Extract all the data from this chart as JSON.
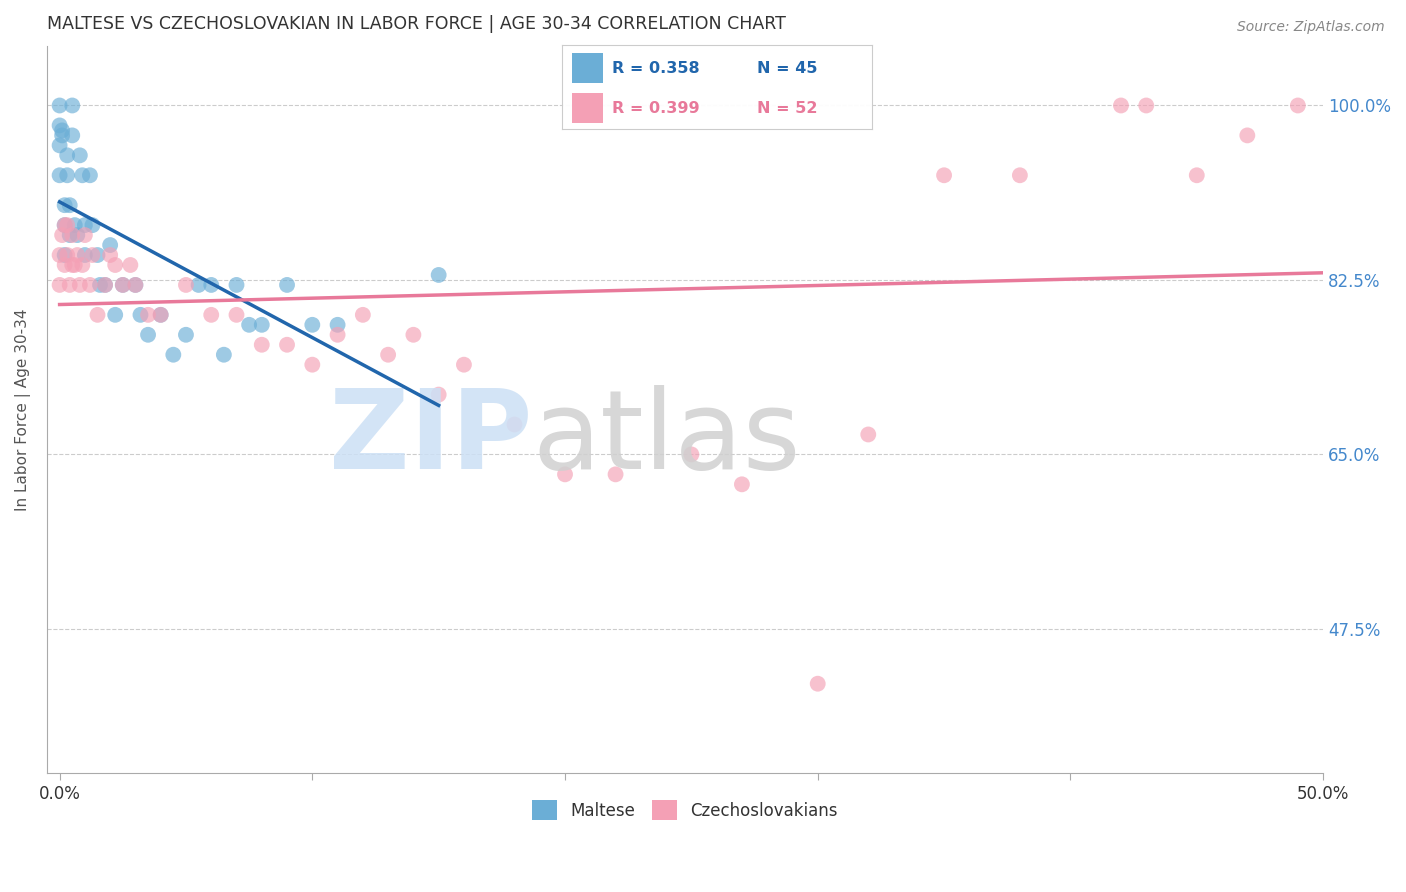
{
  "title": "MALTESE VS CZECHOSLOVAKIAN IN LABOR FORCE | AGE 30-34 CORRELATION CHART",
  "source": "Source: ZipAtlas.com",
  "ylabel": "In Labor Force | Age 30-34",
  "x_ticks": [
    0.0,
    0.1,
    0.2,
    0.3,
    0.4,
    0.5
  ],
  "x_tick_labels_visible": {
    "0.0": "0.0%",
    "0.5": "50.0%"
  },
  "y_tick_labels": [
    "47.5%",
    "65.0%",
    "82.5%",
    "100.0%"
  ],
  "y_ticks": [
    0.475,
    0.65,
    0.825,
    1.0
  ],
  "xlim": [
    -0.005,
    0.5
  ],
  "ylim": [
    0.33,
    1.06
  ],
  "legend_r_maltese": "R = 0.358",
  "legend_n_maltese": "N = 45",
  "legend_r_czech": "R = 0.399",
  "legend_n_czech": "N = 52",
  "maltese_color": "#6baed6",
  "czech_color": "#f4a0b5",
  "maltese_line_color": "#2166ac",
  "czech_line_color": "#e8799a",
  "title_color": "#333333",
  "axis_label_color": "#555555",
  "tick_color_right": "#4488cc",
  "grid_color": "#cccccc",
  "maltese_x": [
    0.0,
    0.0,
    0.0,
    0.0,
    0.001,
    0.001,
    0.002,
    0.002,
    0.002,
    0.003,
    0.003,
    0.004,
    0.004,
    0.005,
    0.005,
    0.006,
    0.007,
    0.008,
    0.009,
    0.01,
    0.01,
    0.012,
    0.013,
    0.015,
    0.016,
    0.018,
    0.02,
    0.022,
    0.025,
    0.03,
    0.032,
    0.035,
    0.04,
    0.045,
    0.05,
    0.055,
    0.06,
    0.065,
    0.07,
    0.075,
    0.08,
    0.09,
    0.1,
    0.11,
    0.15
  ],
  "maltese_y": [
    0.93,
    0.96,
    0.98,
    1.0,
    0.97,
    0.975,
    0.85,
    0.88,
    0.9,
    0.93,
    0.95,
    0.87,
    0.9,
    0.97,
    1.0,
    0.88,
    0.87,
    0.95,
    0.93,
    0.85,
    0.88,
    0.93,
    0.88,
    0.85,
    0.82,
    0.82,
    0.86,
    0.79,
    0.82,
    0.82,
    0.79,
    0.77,
    0.79,
    0.75,
    0.77,
    0.82,
    0.82,
    0.75,
    0.82,
    0.78,
    0.78,
    0.82,
    0.78,
    0.78,
    0.83
  ],
  "czech_x": [
    0.0,
    0.0,
    0.001,
    0.002,
    0.002,
    0.003,
    0.003,
    0.004,
    0.005,
    0.005,
    0.006,
    0.007,
    0.008,
    0.009,
    0.01,
    0.012,
    0.013,
    0.015,
    0.018,
    0.02,
    0.022,
    0.025,
    0.028,
    0.03,
    0.035,
    0.04,
    0.05,
    0.06,
    0.07,
    0.08,
    0.09,
    0.1,
    0.11,
    0.12,
    0.13,
    0.14,
    0.15,
    0.16,
    0.18,
    0.2,
    0.22,
    0.25,
    0.27,
    0.3,
    0.32,
    0.35,
    0.38,
    0.42,
    0.43,
    0.45,
    0.47,
    0.49
  ],
  "czech_y": [
    0.82,
    0.85,
    0.87,
    0.84,
    0.88,
    0.85,
    0.88,
    0.82,
    0.84,
    0.87,
    0.84,
    0.85,
    0.82,
    0.84,
    0.87,
    0.82,
    0.85,
    0.79,
    0.82,
    0.85,
    0.84,
    0.82,
    0.84,
    0.82,
    0.79,
    0.79,
    0.82,
    0.79,
    0.79,
    0.76,
    0.76,
    0.74,
    0.77,
    0.79,
    0.75,
    0.77,
    0.71,
    0.74,
    0.68,
    0.63,
    0.63,
    0.65,
    0.62,
    0.42,
    0.67,
    0.93,
    0.93,
    1.0,
    1.0,
    0.93,
    0.97,
    1.0
  ]
}
